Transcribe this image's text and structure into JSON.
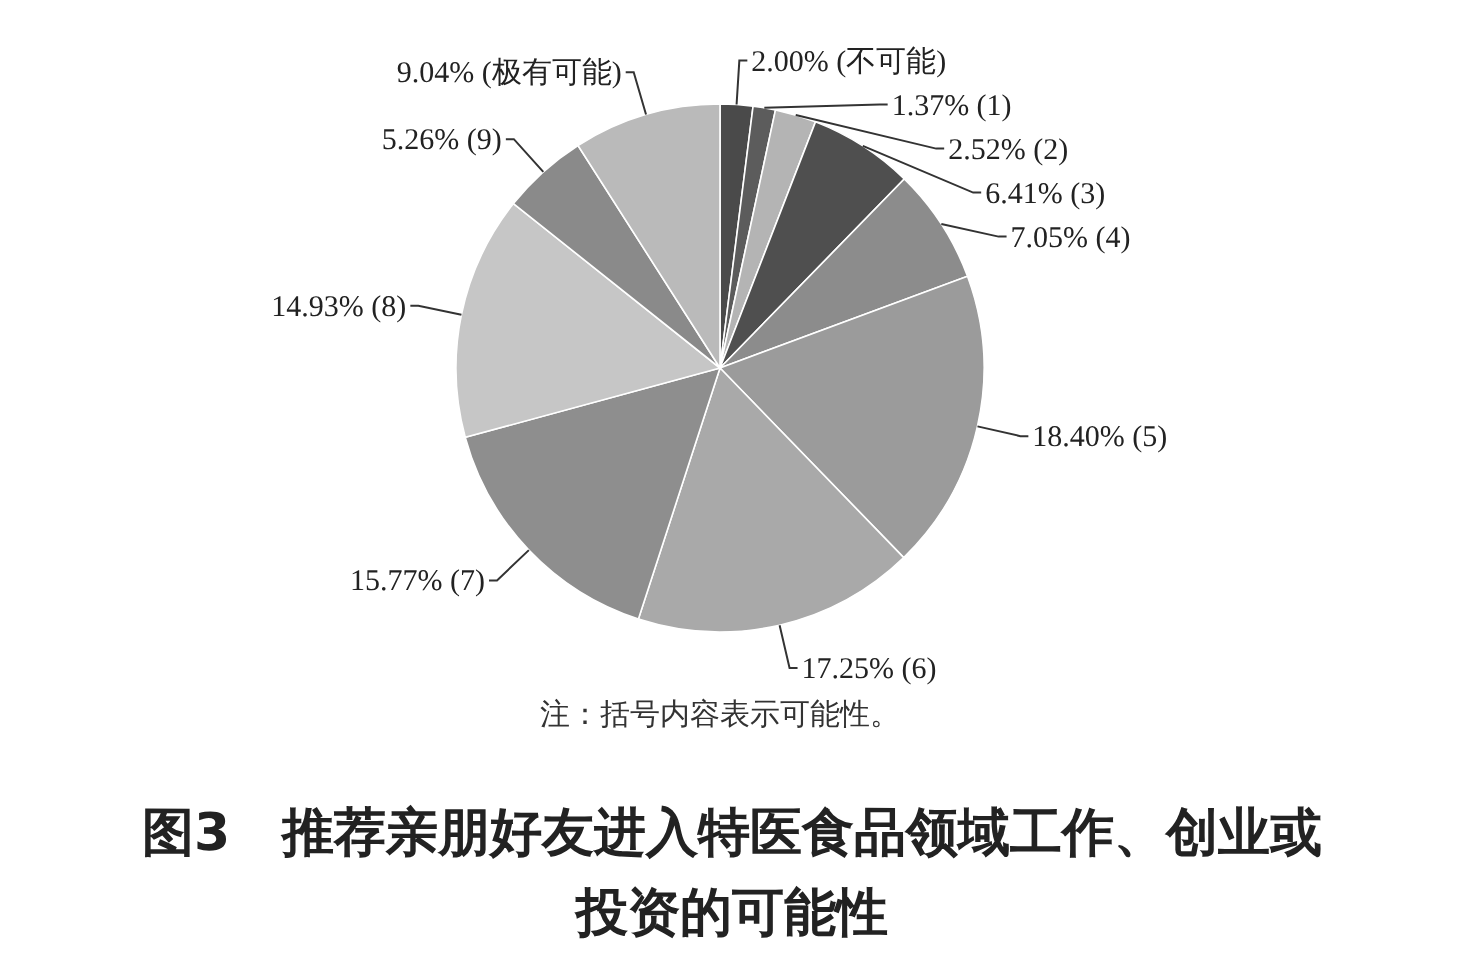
{
  "chart_data": {
    "type": "pie",
    "title": "图3　推荐亲朋好友进入特医食品领域工作、创业或投资的可能性",
    "annotations": [
      "注：括号内容表示可能性。"
    ],
    "categories": [
      "(不可能)",
      "(1)",
      "(2)",
      "(3)",
      "(4)",
      "(5)",
      "(6)",
      "(7)",
      "(8)",
      "(9)",
      "(极有可能)"
    ],
    "values": [
      2.0,
      1.37,
      2.52,
      6.41,
      7.05,
      18.4,
      17.25,
      15.77,
      14.93,
      5.26,
      9.04
    ],
    "value_labels": [
      "2.00%",
      "1.37%",
      "2.52%",
      "6.41%",
      "7.05%",
      "18.40%",
      "17.25%",
      "15.77%",
      "14.93%",
      "5.26%",
      "9.04%"
    ],
    "colors": [
      "#4a4a4a",
      "#5c5c5c",
      "#b4b4b4",
      "#4f4f4f",
      "#8c8c8c",
      "#9b9b9b",
      "#a9a9a9",
      "#8e8e8e",
      "#c6c6c6",
      "#8a8a8a",
      "#bababa"
    ]
  }
}
